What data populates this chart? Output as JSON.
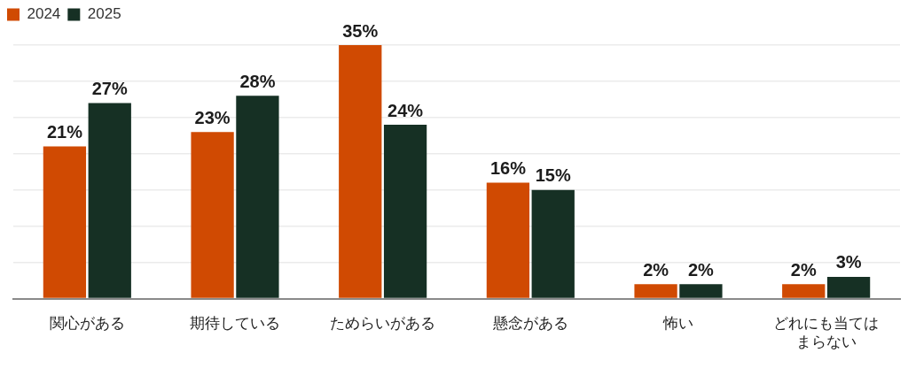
{
  "chart_data": {
    "type": "bar",
    "categories": [
      "関心がある",
      "期待している",
      "ためらいがある",
      "懸念がある",
      "怖い",
      "どれにも当てはまらない"
    ],
    "series": [
      {
        "name": "2024",
        "color": "#d04a02",
        "values": [
          21,
          23,
          35,
          16,
          2,
          2
        ],
        "value_labels": [
          "21%",
          "23%",
          "35%",
          "16%",
          "2%",
          "2%"
        ]
      },
      {
        "name": "2025",
        "color": "#163024",
        "values": [
          27,
          28,
          24,
          15,
          2,
          3
        ],
        "value_labels": [
          "27%",
          "28%",
          "24%",
          "15%",
          "2%",
          "3%"
        ]
      }
    ],
    "yticks": [
      {
        "value": 0,
        "label": null
      },
      {
        "value": 5,
        "label": null
      },
      {
        "value": 10,
        "label": null
      },
      {
        "value": 15,
        "label": null
      },
      {
        "value": 20,
        "label": null
      },
      {
        "value": 25,
        "label": null
      },
      {
        "value": 30,
        "label": null
      },
      {
        "value": 35,
        "label": null
      }
    ],
    "tick_labels": "x",
    "grid": "y",
    "legend": "top left"
  }
}
